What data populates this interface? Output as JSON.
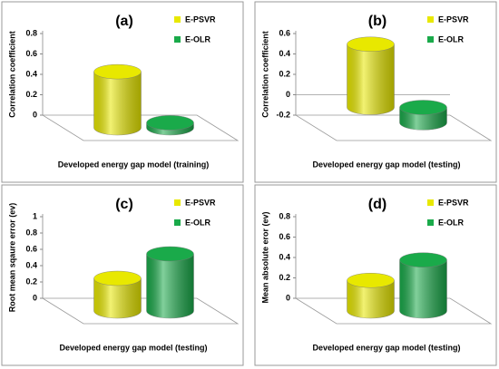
{
  "chart_data": [
    {
      "type": "bar",
      "title": "(a)",
      "x_label": "Developed energy gap model (training)",
      "y_label": "Correlation coefficient",
      "categories": [
        null
      ],
      "series": [
        {
          "name": "E-PSVR",
          "color": "#e8e800",
          "values": [
            0.55
          ]
        },
        {
          "name": "E-OLR",
          "color": "#1aaa4a",
          "values": [
            0.05
          ]
        }
      ],
      "ylim": [
        0,
        0.8
      ],
      "yticks": [
        0,
        0.2,
        0.4,
        0.6,
        0.8
      ]
    },
    {
      "type": "bar",
      "title": "(b)",
      "x_label": "Developed energy gap model (testing)",
      "y_label": "Correlation coefficient",
      "categories": [
        null
      ],
      "series": [
        {
          "name": "E-PSVR",
          "color": "#e8e800",
          "values": [
            0.62
          ]
        },
        {
          "name": "E-OLR",
          "color": "#1aaa4a",
          "values": [
            -0.15
          ]
        }
      ],
      "ylim": [
        -0.2,
        0.6
      ],
      "yticks": [
        -0.2,
        0,
        0.2,
        0.4,
        0.6
      ]
    },
    {
      "type": "bar",
      "title": "(c)",
      "x_label": "Developed energy gap model (testing)",
      "y_label": "Root mean sqaure error (ev)",
      "categories": [
        null
      ],
      "series": [
        {
          "name": "E-PSVR",
          "color": "#e8e800",
          "values": [
            0.4
          ]
        },
        {
          "name": "E-OLR",
          "color": "#1aaa4a",
          "values": [
            0.7
          ]
        }
      ],
      "ylim": [
        0,
        1
      ],
      "yticks": [
        0,
        0.2,
        0.4,
        0.6,
        0.8,
        1
      ]
    },
    {
      "type": "bar",
      "title": "(d)",
      "x_label": "Developed energy gap model (testing)",
      "y_label": "Mean absolute eror (ev)",
      "categories": [
        null
      ],
      "series": [
        {
          "name": "E-PSVR",
          "color": "#e8e800",
          "values": [
            0.3
          ]
        },
        {
          "name": "E-OLR",
          "color": "#1aaa4a",
          "values": [
            0.5
          ]
        }
      ],
      "ylim": [
        0,
        0.8
      ],
      "yticks": [
        0,
        0.2,
        0.4,
        0.6,
        0.8
      ]
    }
  ]
}
